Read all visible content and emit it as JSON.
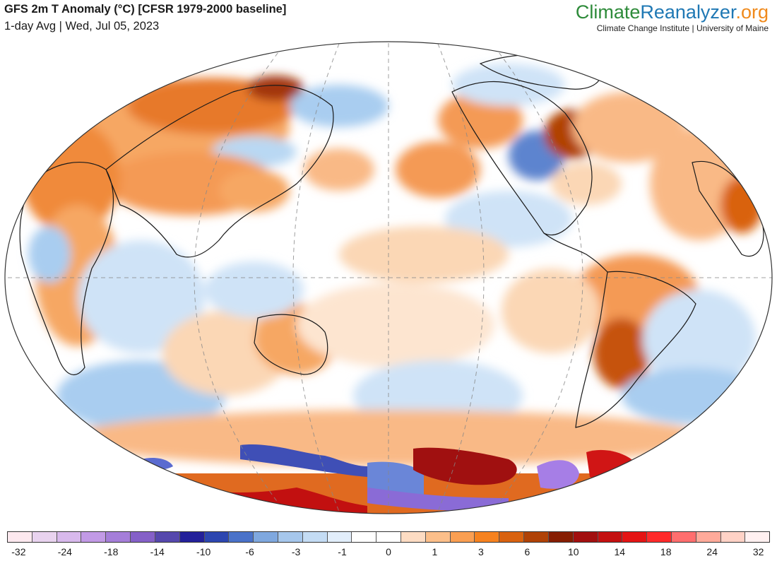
{
  "header": {
    "title": "GFS 2m T Anomaly (°C) [CFSR 1979-2000 baseline]",
    "subtitle": "1-day Avg | Wed, Jul 05, 2023"
  },
  "brand": {
    "part1": "Climate",
    "part2": "Reanalyzer",
    "part3": ".org",
    "tagline": "Climate Change Institute | University of Maine"
  },
  "colors": {
    "brand_green": "#2e8b3a",
    "brand_blue": "#1f78b4",
    "brand_orange": "#f08a1c"
  },
  "colorbar": {
    "colors": [
      "#fde9ef",
      "#e9d3ef",
      "#d8b9ec",
      "#c29ae6",
      "#a57ed9",
      "#8560c8",
      "#5648ad",
      "#23209a",
      "#2c46b0",
      "#4a72c9",
      "#7fa8df",
      "#a6c7ec",
      "#c4dcf4",
      "#e2eefb",
      "#ffffff",
      "#ffffff",
      "#fddcc3",
      "#fcbf8a",
      "#fa9f52",
      "#f6821f",
      "#d9620f",
      "#b04206",
      "#861d02",
      "#a20f0f",
      "#c41010",
      "#e41414",
      "#ff2a2a",
      "#ff6e6e",
      "#ffaa9a",
      "#ffd2c6",
      "#fff0f0"
    ],
    "ticks": [
      {
        "label": "-32",
        "boundary": 1
      },
      {
        "label": "-24",
        "boundary": 3
      },
      {
        "label": "-18",
        "boundary": 5
      },
      {
        "label": "-14",
        "boundary": 7
      },
      {
        "label": "-10",
        "boundary": 9
      },
      {
        "label": "-6",
        "boundary": 11
      },
      {
        "label": "-3",
        "boundary": 13
      },
      {
        "label": "-1",
        "boundary": 15
      },
      {
        "label": "0",
        "boundary": 17
      },
      {
        "label": "1",
        "boundary": 19
      },
      {
        "label": "3",
        "boundary": 21
      },
      {
        "label": "6",
        "boundary": 23
      },
      {
        "label": "10",
        "boundary": 25
      },
      {
        "label": "14",
        "boundary": 27
      },
      {
        "label": "18",
        "boundary": 29
      },
      {
        "label": "24",
        "boundary": 31
      },
      {
        "label": "32",
        "boundary": 33
      }
    ]
  }
}
